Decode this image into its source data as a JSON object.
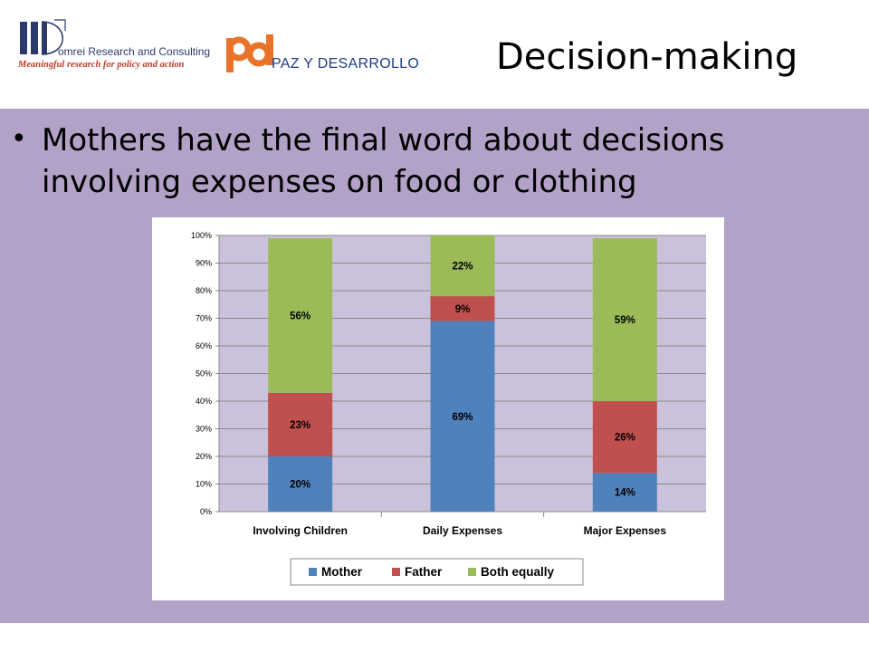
{
  "header": {
    "logo_domrei": {
      "name": "omrei Research and Consulting",
      "tagline": "Meaningful research for policy and action"
    },
    "logo_pd": {
      "name": "PAZ Y DESARROLLO"
    },
    "title": "Decision-making"
  },
  "bullet": {
    "text": "Mothers have the final word about decisions involving expenses on food or clothing"
  },
  "colors": {
    "content_bg": "#b3a2c7",
    "plot_bg": "#ccc1da",
    "mother": "#4f81bd",
    "father": "#c0504d",
    "both": "#9bbb59"
  },
  "chart_data": {
    "type": "bar",
    "stacked": true,
    "categories": [
      "Involving Children",
      "Daily Expenses",
      "Major Expenses"
    ],
    "series": [
      {
        "name": "Mother",
        "values": [
          20,
          69,
          14
        ],
        "labels": [
          "20%",
          "69%",
          "14%"
        ]
      },
      {
        "name": "Father",
        "values": [
          23,
          9,
          26
        ],
        "labels": [
          "23%",
          "9%",
          "26%"
        ]
      },
      {
        "name": "Both equally",
        "values": [
          56,
          22,
          59
        ],
        "labels": [
          "56%",
          "22%",
          "59%"
        ]
      }
    ],
    "y_ticks": [
      "0%",
      "10%",
      "20%",
      "30%",
      "40%",
      "50%",
      "60%",
      "70%",
      "80%",
      "90%",
      "100%"
    ],
    "ylim": [
      0,
      100
    ],
    "grid": true,
    "legend_position": "bottom"
  }
}
